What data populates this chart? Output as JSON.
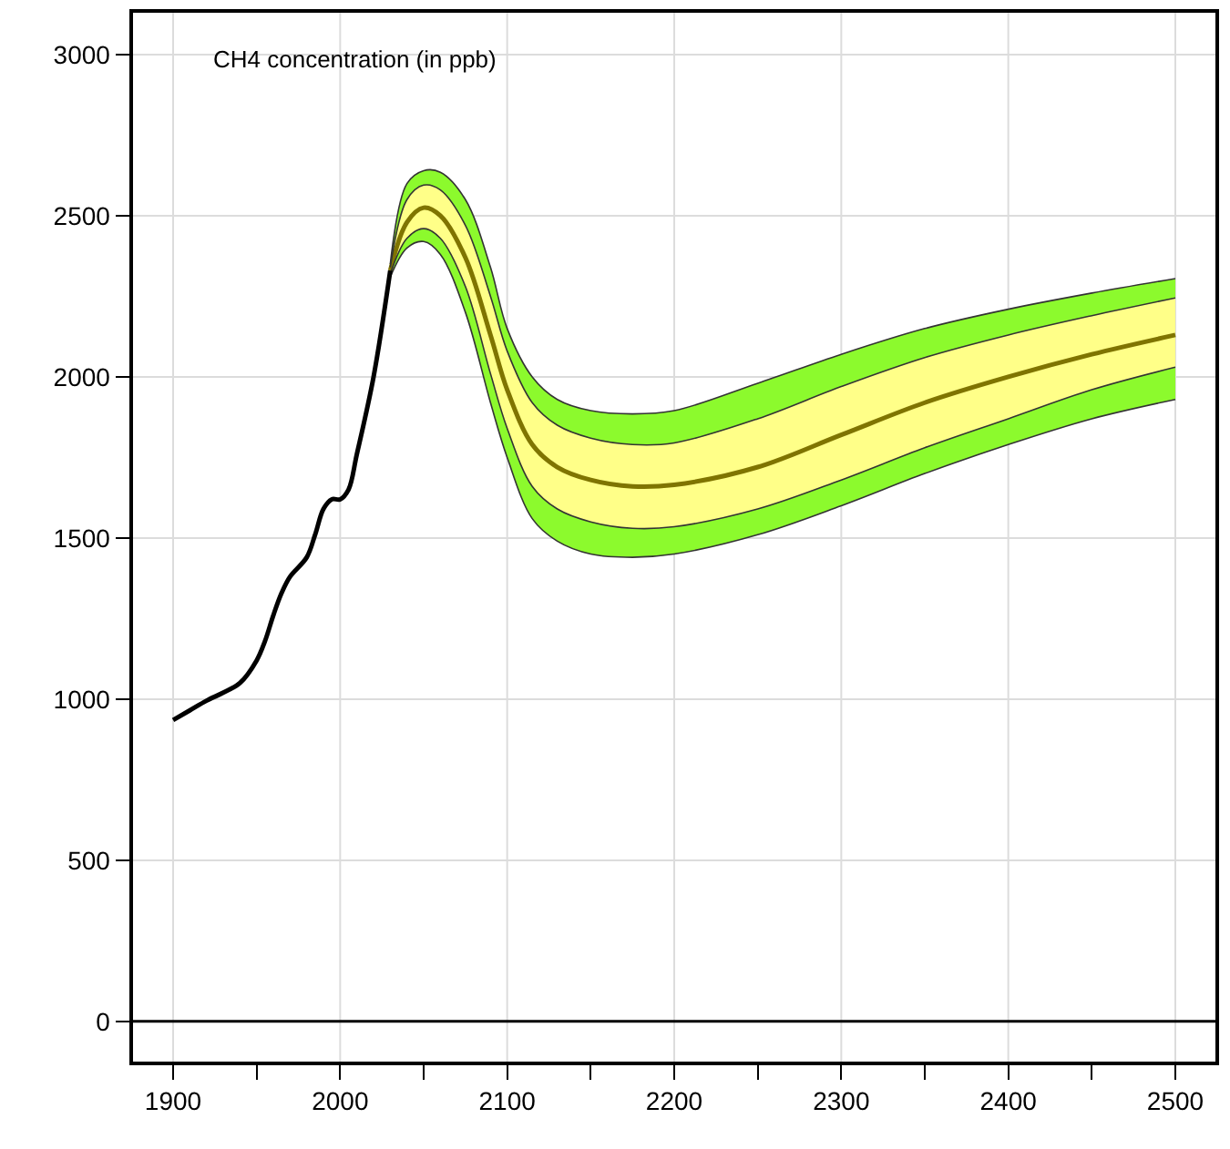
{
  "chart_data": {
    "type": "line",
    "annotations": [
      "CH4 concentration (in ppb)"
    ],
    "xlim": [
      1876,
      2524
    ],
    "ylim": [
      -125,
      3130
    ],
    "xticks": [
      1900,
      {
        "value": 1950,
        "label": null
      },
      2000,
      {
        "value": 2050,
        "label": null
      },
      2100,
      {
        "value": 2150,
        "label": null
      },
      2200,
      {
        "value": 2250,
        "label": null
      },
      2300,
      {
        "value": 2350,
        "label": null
      },
      2400,
      {
        "value": 2450,
        "label": null
      },
      2500
    ],
    "yticks": [
      0,
      500,
      1000,
      1500,
      2000,
      2500,
      3000
    ],
    "grid": true,
    "ref_lines": [
      {
        "axis": "y",
        "value": 0,
        "color": "#000000"
      }
    ],
    "series": [
      {
        "color": "#8cfa2d",
        "x": [
          2030,
          2040,
          2050,
          2060,
          2075,
          2090,
          2100,
          2115,
          2130,
          2150,
          2175,
          2200,
          2250,
          2300,
          2350,
          2400,
          2450,
          2500
        ],
        "values": [
          null,
          null,
          null,
          null,
          null,
          null,
          null,
          null,
          null,
          null,
          null,
          null,
          null,
          null,
          null,
          null,
          null,
          null
        ],
        "lower": [
          2310,
          2400,
          2420,
          2380,
          2200,
          1920,
          1750,
          1560,
          1490,
          1450,
          1440,
          1450,
          1510,
          1600,
          1700,
          1790,
          1870,
          1930
        ],
        "upper": [
          2350,
          2600,
          2640,
          2635,
          2550,
          2340,
          2150,
          2000,
          1930,
          1895,
          1885,
          1895,
          1980,
          2070,
          2150,
          2210,
          2260,
          2305
        ]
      },
      {
        "color": "#ffff88",
        "x": [
          2030,
          2040,
          2050,
          2060,
          2075,
          2090,
          2100,
          2115,
          2130,
          2150,
          2175,
          2200,
          2250,
          2300,
          2350,
          2400,
          2450,
          2500
        ],
        "values": [
          null,
          null,
          null,
          null,
          null,
          null,
          null,
          null,
          null,
          null,
          null,
          null,
          null,
          null,
          null,
          null,
          null,
          null
        ],
        "lower": [
          2320,
          2430,
          2460,
          2430,
          2280,
          2010,
          1840,
          1660,
          1590,
          1550,
          1530,
          1535,
          1590,
          1680,
          1780,
          1870,
          1960,
          2030
        ],
        "upper": [
          2340,
          2550,
          2595,
          2580,
          2470,
          2250,
          2080,
          1920,
          1850,
          1810,
          1790,
          1795,
          1870,
          1970,
          2060,
          2130,
          2190,
          2245
        ]
      },
      {
        "color": "#7f7400",
        "x": [
          2030,
          2040,
          2050,
          2060,
          2075,
          2090,
          2100,
          2115,
          2130,
          2150,
          2175,
          2200,
          2250,
          2300,
          2350,
          2400,
          2450,
          2500
        ],
        "values": [
          2330,
          2480,
          2525,
          2500,
          2370,
          2130,
          1960,
          1790,
          1720,
          1680,
          1660,
          1665,
          1720,
          1820,
          1920,
          2000,
          2070,
          2130
        ]
      },
      {
        "color": "#333333",
        "x": [
          2030,
          2040,
          2050,
          2060,
          2075,
          2090,
          2100,
          2115,
          2130,
          2150,
          2175,
          2200,
          2250,
          2300,
          2350,
          2400,
          2450,
          2500
        ],
        "values": [
          2310,
          2400,
          2420,
          2380,
          2200,
          1920,
          1750,
          1560,
          1490,
          1450,
          1440,
          1450,
          1510,
          1600,
          1700,
          1790,
          1870,
          1930
        ]
      },
      {
        "color": "#333333",
        "x": [
          2030,
          2040,
          2050,
          2060,
          2075,
          2090,
          2100,
          2115,
          2130,
          2150,
          2175,
          2200,
          2250,
          2300,
          2350,
          2400,
          2450,
          2500
        ],
        "values": [
          2350,
          2600,
          2640,
          2635,
          2550,
          2340,
          2150,
          2000,
          1930,
          1895,
          1885,
          1895,
          1980,
          2070,
          2150,
          2210,
          2260,
          2305
        ]
      },
      {
        "color": "#333333",
        "x": [
          2030,
          2040,
          2050,
          2060,
          2075,
          2090,
          2100,
          2115,
          2130,
          2150,
          2175,
          2200,
          2250,
          2300,
          2350,
          2400,
          2450,
          2500
        ],
        "values": [
          2320,
          2430,
          2460,
          2430,
          2280,
          2010,
          1840,
          1660,
          1590,
          1550,
          1530,
          1535,
          1590,
          1680,
          1780,
          1870,
          1960,
          2030
        ]
      },
      {
        "color": "#333333",
        "x": [
          2030,
          2040,
          2050,
          2060,
          2075,
          2090,
          2100,
          2115,
          2130,
          2150,
          2175,
          2200,
          2250,
          2300,
          2350,
          2400,
          2450,
          2500
        ],
        "values": [
          2340,
          2550,
          2595,
          2580,
          2470,
          2250,
          2080,
          1920,
          1850,
          1810,
          1790,
          1795,
          1870,
          1970,
          2060,
          2130,
          2190,
          2245
        ]
      },
      {
        "color": "#000000",
        "x": [
          1900,
          1910,
          1920,
          1930,
          1940,
          1950,
          1955,
          1960,
          1965,
          1970,
          1980,
          1985,
          1990,
          1995,
          2000,
          2005,
          2010,
          2020,
          2030
        ],
        "values": [
          935,
          965,
          995,
          1020,
          1050,
          1120,
          1180,
          1260,
          1330,
          1380,
          1440,
          1510,
          1590,
          1620,
          1620,
          1650,
          1760,
          2000,
          2330
        ]
      }
    ]
  }
}
